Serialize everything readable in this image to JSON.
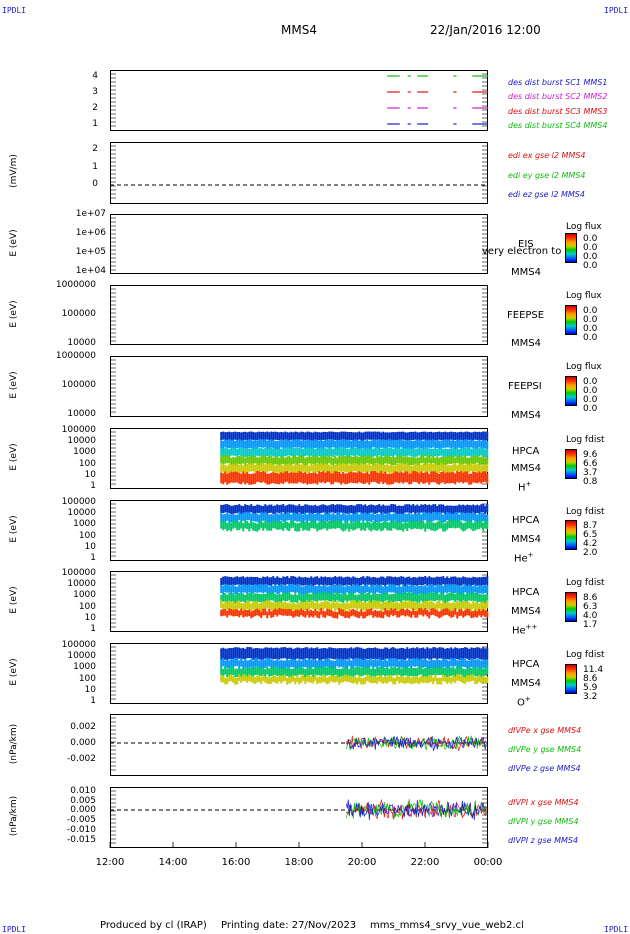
{
  "header": {
    "corner_label": "IPDLI",
    "spacecraft": "MMS4",
    "datetime": "22/Jan/2016 12:00"
  },
  "footer": {
    "produced_by": "Produced by cl (IRAP)",
    "printing_date": "Printing date: 27/Nov/2023",
    "file": "mms_mms4_srvy_vue_web2.cl"
  },
  "x_axis": {
    "ticks": [
      "12:00",
      "14:00",
      "16:00",
      "18:00",
      "20:00",
      "22:00",
      "00:00"
    ]
  },
  "panels": {
    "availability": {
      "yticks": [
        "4",
        "3",
        "2",
        "1"
      ],
      "legend": [
        {
          "text": "des dist burst SC1 MMS1",
          "color": "#1a1acc"
        },
        {
          "text": "des dist burst SC2 MMS2",
          "color": "#cc22cc"
        },
        {
          "text": "des dist burst SC3 MMS3",
          "color": "#dd1111"
        },
        {
          "text": "des dist burst SC4 MMS4",
          "color": "#11bb11"
        }
      ]
    },
    "edi": {
      "ylabel": "(mV/m)",
      "yticks": [
        "2",
        "1",
        "0"
      ],
      "legend": [
        {
          "text": "edi ex gse l2 MMS4",
          "color": "#dd1111"
        },
        {
          "text": "edi ey gse l2 MMS4",
          "color": "#11bb11"
        },
        {
          "text": "edi ez gse l2 MMS4",
          "color": "#1a1acc"
        }
      ]
    },
    "eis": {
      "ylabel": "E (eV)",
      "yticks": [
        "1e+07",
        "1e+06",
        "1e+05",
        "1e+04"
      ],
      "instrument": "EIS",
      "overlay": "very electron to",
      "spacecraft": "MMS4",
      "cb_title": "Log flux",
      "cb_values": [
        "0.0",
        "0.0",
        "0.0",
        "0.0"
      ]
    },
    "feepse": {
      "ylabel": "E (eV)",
      "yticks": [
        "1000000",
        "100000",
        "10000"
      ],
      "instrument": "FEEPSE",
      "spacecraft": "MMS4",
      "cb_title": "Log flux",
      "cb_values": [
        "0.0",
        "0.0",
        "0.0",
        "0.0"
      ]
    },
    "feepsi": {
      "ylabel": "E (eV)",
      "yticks": [
        "1000000",
        "100000",
        "10000"
      ],
      "instrument": "FEEPSI",
      "spacecraft": "MMS4",
      "cb_title": "Log flux",
      "cb_values": [
        "0.0",
        "0.0",
        "0.0",
        "0.0"
      ]
    },
    "hpca_h": {
      "ylabel": "E (eV)",
      "yticks": [
        "100000",
        "10000",
        "1000",
        "100",
        "10",
        "1"
      ],
      "instrument": "HPCA",
      "spacecraft": "MMS4",
      "species": "H",
      "species_sup": "+",
      "cb_title": "Log fdist",
      "cb_values": [
        "9.6",
        "6.6",
        "3.7",
        "0.8"
      ]
    },
    "hpca_he": {
      "ylabel": "E (eV)",
      "yticks": [
        "100000",
        "10000",
        "1000",
        "100",
        "10",
        "1"
      ],
      "instrument": "HPCA",
      "spacecraft": "MMS4",
      "species": "He",
      "species_sup": "+",
      "cb_title": "Log fdist",
      "cb_values": [
        "8.7",
        "6.5",
        "4.2",
        "2.0"
      ]
    },
    "hpca_he2": {
      "ylabel": "E (eV)",
      "yticks": [
        "100000",
        "10000",
        "1000",
        "100",
        "10",
        "1"
      ],
      "instrument": "HPCA",
      "spacecraft": "MMS4",
      "species": "He",
      "species_sup": "++",
      "cb_title": "Log fdist",
      "cb_values": [
        "8.6",
        "6.3",
        "4.0",
        "1.7"
      ]
    },
    "hpca_o": {
      "ylabel": "E (eV)",
      "yticks": [
        "100000",
        "10000",
        "1000",
        "100",
        "10",
        "1"
      ],
      "instrument": "HPCA",
      "spacecraft": "MMS4",
      "species": "O",
      "species_sup": "+",
      "cb_title": "Log fdist",
      "cb_values": [
        "11.4",
        "8.6",
        "5.9",
        "3.2"
      ]
    },
    "divpe": {
      "ylabel": "(nPa/km)",
      "yticks": [
        "0.002",
        "0.000",
        "-0.002"
      ],
      "legend": [
        {
          "text": "dIVPe x gse MMS4",
          "color": "#dd1111"
        },
        {
          "text": "dIVPe y gse MMS4",
          "color": "#11bb11"
        },
        {
          "text": "dIVPe z gse MMS4",
          "color": "#1a1acc"
        }
      ]
    },
    "divpi": {
      "ylabel": "(nPa/km)",
      "yticks": [
        "0.010",
        "0.005",
        "0.000",
        "-0.005",
        "-0.010",
        "-0.015"
      ],
      "legend": [
        {
          "text": "dIVPI x gse MMS4",
          "color": "#dd1111"
        },
        {
          "text": "dIVPI y gse MMS4",
          "color": "#11bb11"
        },
        {
          "text": "dIVPI z gse MMS4",
          "color": "#1a1acc"
        }
      ]
    }
  },
  "chart_data": {
    "type": "heatmap",
    "x_range": [
      "12:00",
      "00:00"
    ],
    "hpca_coverage_start": "15:30",
    "divp_coverage_start": "19:30",
    "edi_value": 0,
    "colors": {
      "mms1": "#1a1acc",
      "mms2": "#cc22cc",
      "mms3": "#dd1111",
      "mms4": "#11bb11"
    }
  }
}
